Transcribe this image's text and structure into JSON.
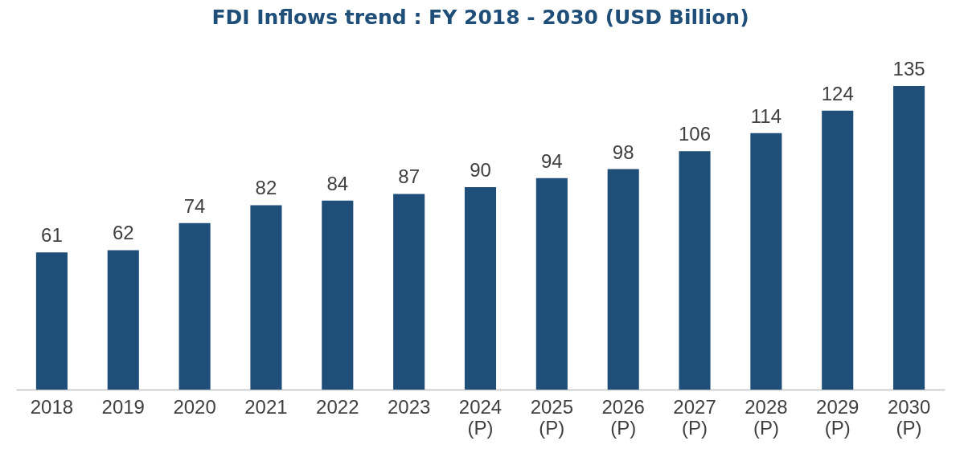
{
  "chart_data": {
    "type": "bar",
    "title": "FDI Inflows trend : FY 2018 - 2030 (USD Billion)",
    "categories": [
      "2018",
      "2019",
      "2020",
      "2021",
      "2022",
      "2023",
      "2024 (P)",
      "2025 (P)",
      "2026 (P)",
      "2027 (P)",
      "2028 (P)",
      "2029 (P)",
      "2030 (P)"
    ],
    "values": [
      61,
      62,
      74,
      82,
      84,
      87,
      90,
      94,
      98,
      106,
      114,
      124,
      135
    ],
    "color": "#1f4e79",
    "data_labels": true
  }
}
